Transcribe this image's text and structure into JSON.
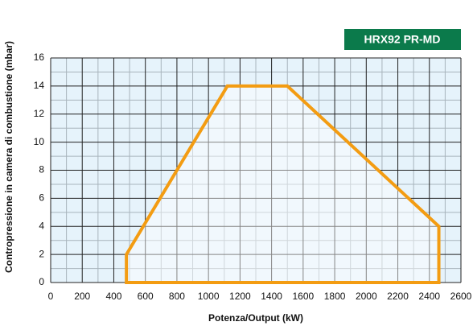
{
  "chart_data": {
    "type": "line",
    "xlabel": "Potenza/Output (kW)",
    "ylabel": "Contropressione in camera di combustione (mbar)",
    "x": [
      480,
      480,
      1120,
      1500,
      2460,
      2460
    ],
    "series": [
      {
        "name": "HRX92 PR-MD",
        "color": "#f39c12",
        "values": [
          0,
          2,
          14,
          14,
          4,
          0
        ]
      }
    ],
    "closed": true,
    "xlim": [
      0,
      2600
    ],
    "xticks": [
      0,
      200,
      400,
      600,
      800,
      1000,
      1200,
      1400,
      1600,
      1800,
      2000,
      2200,
      2400,
      2600
    ],
    "ylim": [
      0,
      16
    ],
    "yticks": [
      0,
      2,
      4,
      6,
      8,
      10,
      12,
      14,
      16
    ],
    "x_minor_ticks": [
      100,
      300,
      500,
      700,
      900,
      1100,
      1300,
      1500,
      1700,
      1900,
      2100,
      2300,
      2500
    ],
    "y_minor_ticks": [
      1,
      3,
      5,
      7,
      9,
      11,
      13,
      15
    ],
    "grid": true
  }
}
